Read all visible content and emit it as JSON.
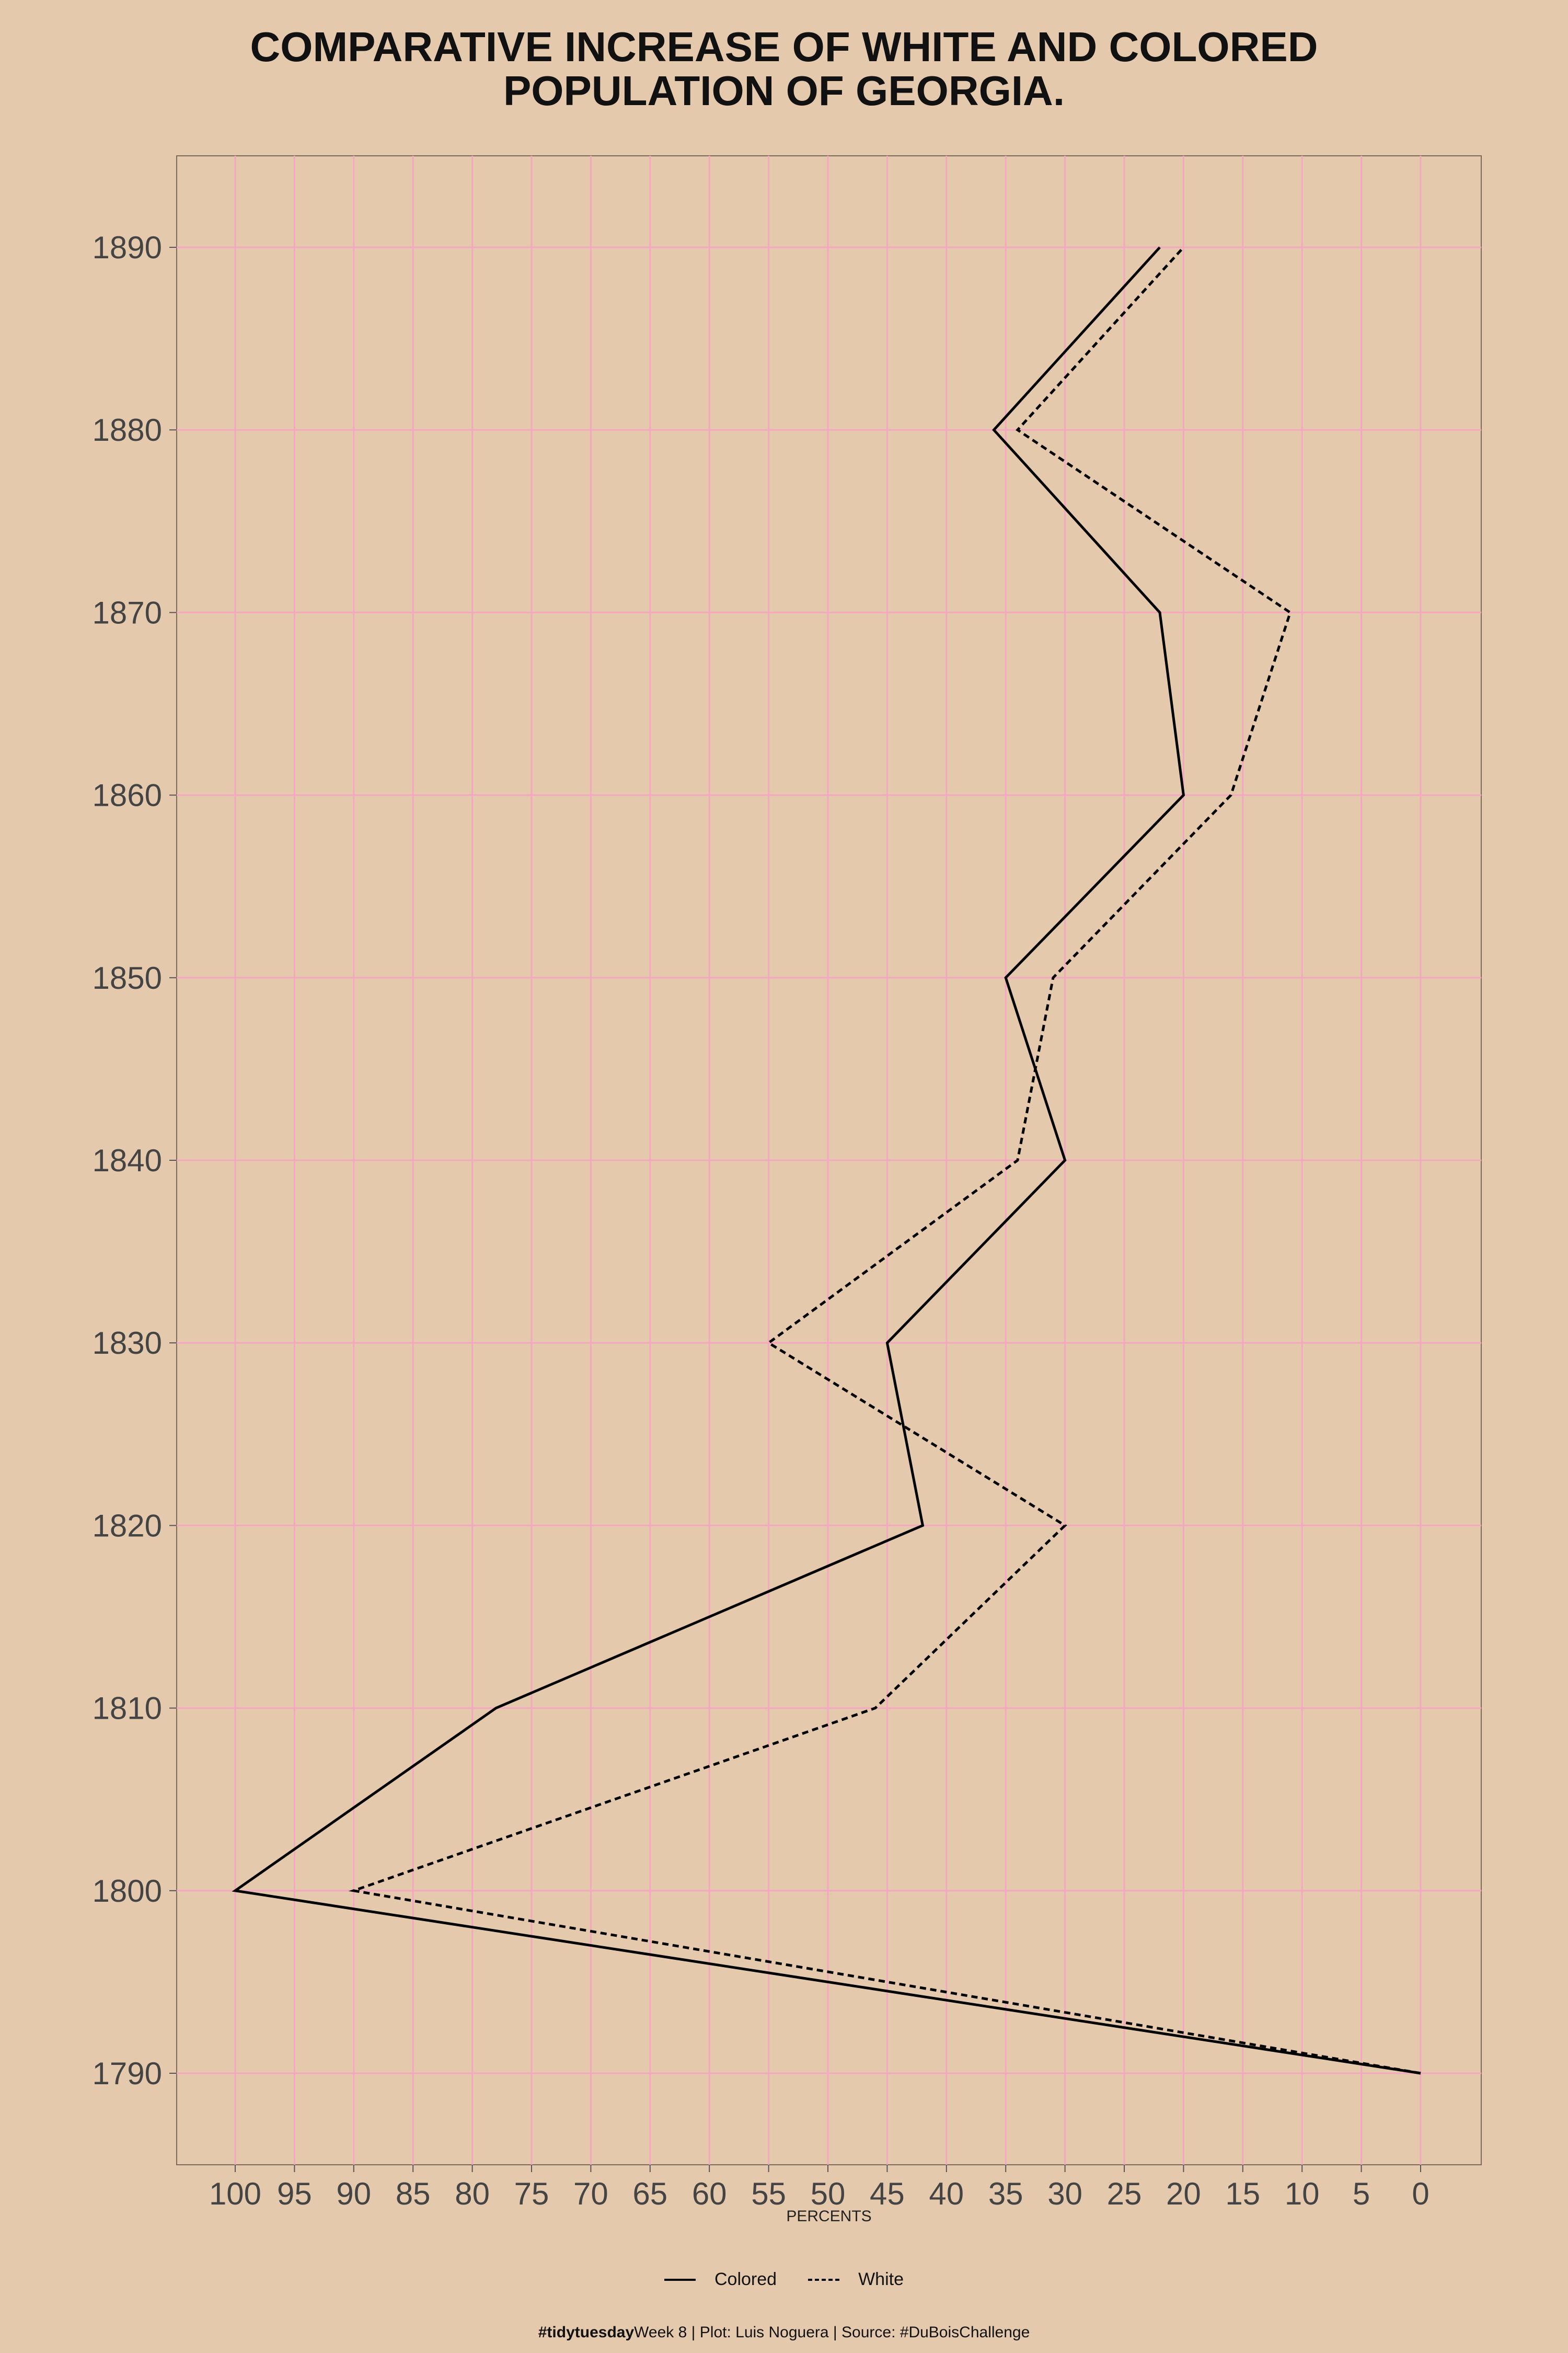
{
  "chart_data": {
    "type": "line",
    "title_lines": [
      "COMPARATIVE INCREASE OF WHITE AND COLORED",
      "POPULATION OF GEORGIA."
    ],
    "xlabel": "PERCENTS",
    "ylabel": "",
    "x_reversed": true,
    "xlim": [
      0,
      100
    ],
    "ylim": [
      1790,
      1890
    ],
    "x_ticks": [
      100,
      95,
      90,
      85,
      80,
      75,
      70,
      65,
      60,
      55,
      50,
      45,
      40,
      35,
      30,
      25,
      20,
      15,
      10,
      5,
      0
    ],
    "y_ticks": [
      1790,
      1800,
      1810,
      1820,
      1830,
      1840,
      1850,
      1860,
      1870,
      1880,
      1890
    ],
    "grid": true,
    "grid_color": "#f4a7c0",
    "background": "#e5c9ad",
    "legend_position": "bottom",
    "series": [
      {
        "name": "Colored",
        "line_style": "solid",
        "color": "#000000",
        "points": [
          {
            "year": 1790,
            "percent": 0
          },
          {
            "year": 1800,
            "percent": 100
          },
          {
            "year": 1810,
            "percent": 78
          },
          {
            "year": 1820,
            "percent": 42
          },
          {
            "year": 1830,
            "percent": 45
          },
          {
            "year": 1840,
            "percent": 30
          },
          {
            "year": 1850,
            "percent": 35
          },
          {
            "year": 1860,
            "percent": 20
          },
          {
            "year": 1870,
            "percent": 22
          },
          {
            "year": 1880,
            "percent": 36
          },
          {
            "year": 1890,
            "percent": 22
          }
        ]
      },
      {
        "name": "White",
        "line_style": "dashed",
        "color": "#000000",
        "points": [
          {
            "year": 1790,
            "percent": 0
          },
          {
            "year": 1800,
            "percent": 90
          },
          {
            "year": 1810,
            "percent": 46
          },
          {
            "year": 1820,
            "percent": 30
          },
          {
            "year": 1830,
            "percent": 55
          },
          {
            "year": 1840,
            "percent": 34
          },
          {
            "year": 1850,
            "percent": 31
          },
          {
            "year": 1860,
            "percent": 16
          },
          {
            "year": 1870,
            "percent": 11
          },
          {
            "year": 1880,
            "percent": 34
          },
          {
            "year": 1890,
            "percent": 20
          }
        ]
      }
    ]
  },
  "legend": {
    "colored_label": "Colored",
    "white_label": "White"
  },
  "caption": {
    "hashtag": "#tidytuesday",
    "rest": "Week 8 | Plot: Luis Noguera | Source: #DuBoisChallenge"
  }
}
